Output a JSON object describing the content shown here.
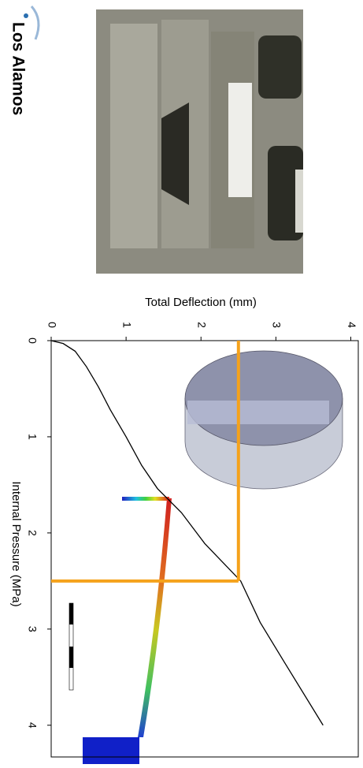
{
  "logo": {
    "text": "Los Alamos"
  },
  "chart_data": {
    "type": "line",
    "x_label": "Internal Pressure (MPa)",
    "y_label": "Total Deflection (mm)",
    "x": [
      0,
      0.03,
      0.11,
      0.27,
      0.48,
      0.72,
      1.0,
      1.3,
      1.54,
      1.79,
      2.11,
      2.5,
      2.93,
      3.34,
      4.0
    ],
    "values": [
      0,
      0.16,
      0.32,
      0.47,
      0.63,
      0.79,
      1.0,
      1.21,
      1.42,
      1.74,
      2.05,
      2.53,
      2.79,
      3.11,
      3.63
    ],
    "color": "#000000",
    "xlim": [
      0,
      4.33
    ],
    "ylim": [
      0,
      4.1
    ],
    "xticks": [
      0,
      1,
      2,
      3,
      4
    ],
    "yticks": [
      0,
      1,
      2,
      3,
      4
    ],
    "guides": {
      "x": 2.5,
      "y": 2.5,
      "color": "#f5a21b"
    }
  }
}
